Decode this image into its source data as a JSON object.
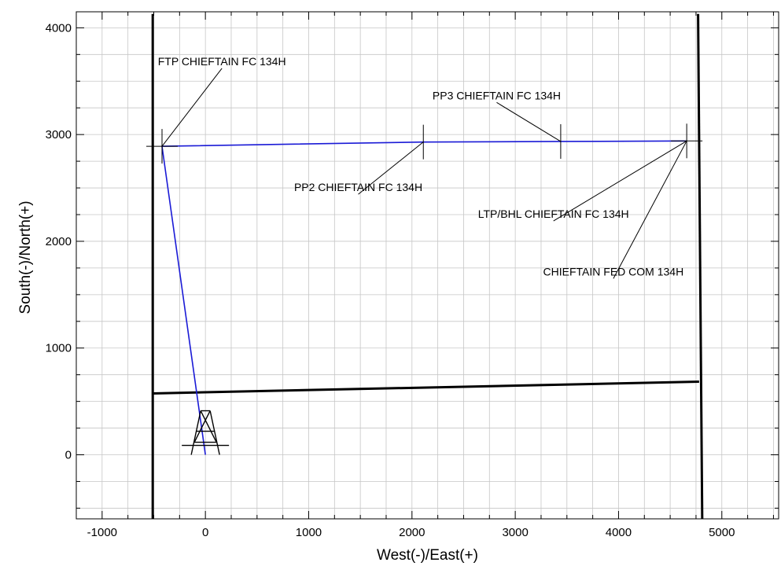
{
  "chart_data": {
    "type": "line",
    "xlabel": "West(-)/East(+)",
    "ylabel": "South(-)/North(+)",
    "xlim": [
      -1250,
      5550
    ],
    "ylim": [
      -600,
      4150
    ],
    "x_ticks": [
      -1000,
      0,
      1000,
      2000,
      3000,
      4000,
      5000
    ],
    "y_ticks": [
      0,
      1000,
      2000,
      3000,
      4000
    ],
    "grid": true,
    "series": [
      {
        "name": "CHIEFTAIN FED COM 134H",
        "color": "#1a1ad6",
        "points": [
          {
            "x": 0,
            "y": 0
          },
          {
            "x": -420,
            "y": 2890
          },
          {
            "x": 2110,
            "y": 2930
          },
          {
            "x": 3440,
            "y": 2935
          },
          {
            "x": 4660,
            "y": 2940
          }
        ]
      }
    ],
    "lease_lines": [
      {
        "points": [
          {
            "x": -510,
            "y": 4130
          },
          {
            "x": -510,
            "y": -600
          }
        ]
      },
      {
        "points": [
          {
            "x": 4770,
            "y": 4130
          },
          {
            "x": 4810,
            "y": -600
          }
        ]
      },
      {
        "points": [
          {
            "x": -510,
            "y": 575
          },
          {
            "x": 4780,
            "y": 685
          }
        ]
      }
    ],
    "annotations": [
      {
        "text": "FTP CHIEFTAIN FC 134H",
        "target": {
          "x": -420,
          "y": 2890
        },
        "anchor": {
          "x": 160,
          "y": 3650
        }
      },
      {
        "text": "PP3 CHIEFTAIN FC 134H",
        "target": {
          "x": 3440,
          "y": 2935
        },
        "anchor": {
          "x": 2820,
          "y": 3330
        }
      },
      {
        "text": "PP2 CHIEFTAIN FC 134H",
        "target": {
          "x": 2110,
          "y": 2930
        },
        "anchor": {
          "x": 1480,
          "y": 2470
        }
      },
      {
        "text": "LTP/BHL CHIEFTAIN FC 134H",
        "target": {
          "x": 4660,
          "y": 2940
        },
        "anchor": {
          "x": 3370,
          "y": 2220
        }
      },
      {
        "text": "CHIEFTAIN FED COM 134H",
        "target": {
          "x": 4660,
          "y": 2940
        },
        "anchor": {
          "x": 3950,
          "y": 1680
        },
        "color": "#1a1ad6"
      }
    ],
    "markers": [
      {
        "type": "rig",
        "x": 0,
        "y": 0
      }
    ]
  }
}
